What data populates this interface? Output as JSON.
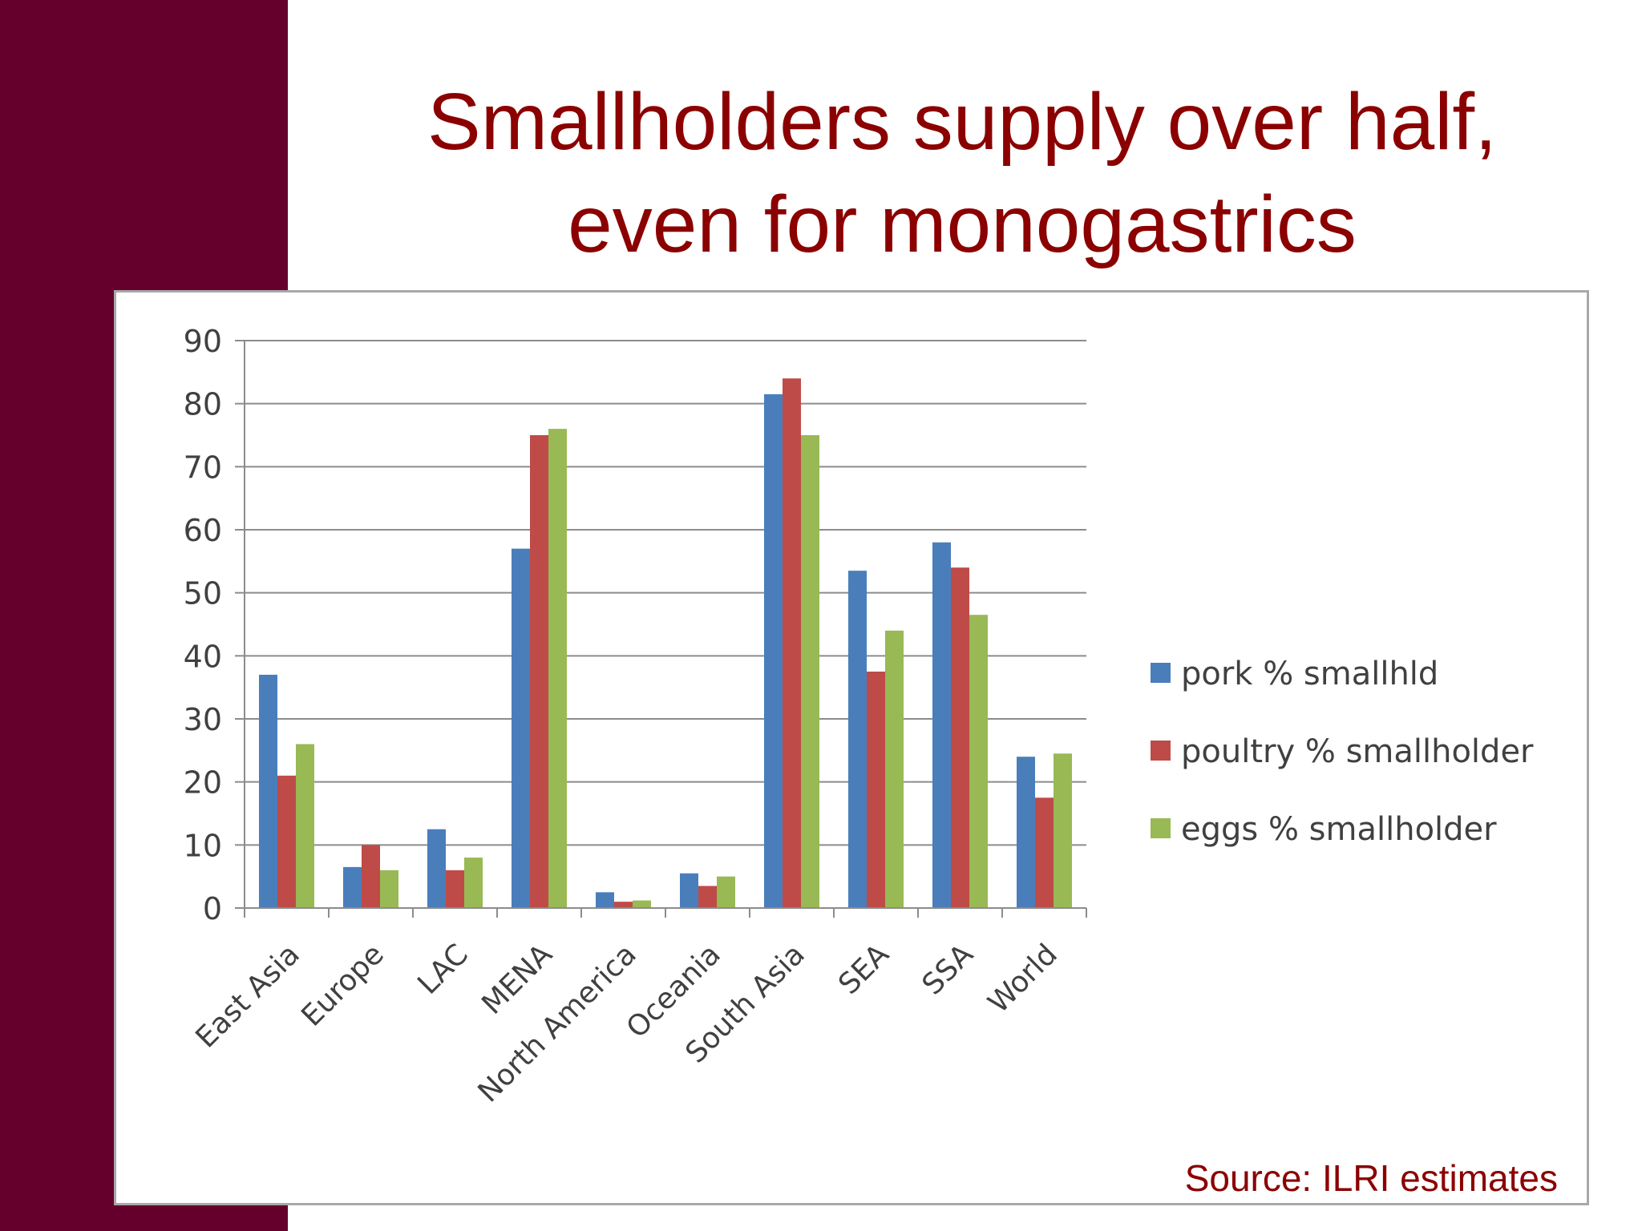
{
  "slide": {
    "title_line1": "Smallholders supply over half,",
    "title_line2": "even for monogastrics",
    "source": "Source: ILRI estimates",
    "colors": {
      "side_band": "#65002d",
      "title_text": "#8b0000"
    }
  },
  "chart_data": {
    "type": "bar",
    "categories": [
      "East Asia",
      "Europe",
      "LAC",
      "MENA",
      "North America",
      "Oceania",
      "South Asia",
      "SEA",
      "SSA",
      "World"
    ],
    "series": [
      {
        "name": "pork % smallhld",
        "color": "#4a7ebb",
        "values": [
          37,
          6.5,
          12.5,
          57,
          2.5,
          5.5,
          81.5,
          53.5,
          58,
          24
        ]
      },
      {
        "name": "poultry % smallholder",
        "color": "#be4b48",
        "values": [
          21,
          10,
          6,
          75,
          1,
          3.5,
          84,
          37.5,
          54,
          17.5
        ]
      },
      {
        "name": "eggs % smallholder",
        "color": "#98b954",
        "values": [
          26,
          6,
          8,
          76,
          1.2,
          5,
          75,
          44,
          46.5,
          24.5
        ]
      }
    ],
    "ylim": [
      0,
      90
    ],
    "yticks": [
      0,
      10,
      20,
      30,
      40,
      50,
      60,
      70,
      80,
      90
    ],
    "grid": true,
    "legend_position": "right",
    "xlabel": "",
    "ylabel": ""
  }
}
